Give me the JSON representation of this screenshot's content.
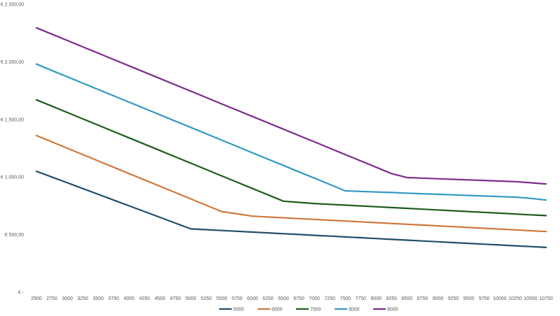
{
  "chart_data": {
    "type": "line",
    "title": "",
    "xlabel": "",
    "ylabel": "",
    "x": [
      2500,
      2750,
      3000,
      3250,
      3500,
      3750,
      4000,
      4250,
      4500,
      4750,
      5000,
      5250,
      5500,
      5750,
      6000,
      6250,
      6500,
      6750,
      7000,
      7250,
      7500,
      7750,
      8000,
      8250,
      8500,
      8750,
      9000,
      9250,
      9500,
      9750,
      10000,
      10250,
      10500,
      10750
    ],
    "x_tick_labels": [
      "2500",
      "2750",
      "3000",
      "3250",
      "3500",
      "3750",
      "4000",
      "4250",
      "4500",
      "4750",
      "5000",
      "5250",
      "5500",
      "5750",
      "6000",
      "6250",
      "6500",
      "6750",
      "7000",
      "7250",
      "7500",
      "7750",
      "8000",
      "8250",
      "8500",
      "8750",
      "9000",
      "9250",
      "9500",
      "9750",
      "10000",
      "10250",
      "10500",
      "10750"
    ],
    "ylim": [
      0,
      2500
    ],
    "y_ticks": [
      0,
      500,
      1000,
      1500,
      2000,
      2500
    ],
    "y_tick_labels": [
      "€ -",
      "€ 500,00",
      "€ 1.000,00",
      "€ 1.500,00",
      "€ 2.000,00",
      "€ 2.500,00"
    ],
    "grid": false,
    "legend_position": "bottom",
    "series": [
      {
        "name": "5000",
        "color": "#1f4e6b",
        "values": [
          1050,
          1000,
          950,
          900,
          850,
          800,
          750,
          700,
          650,
          600,
          550,
          543,
          536,
          529,
          522,
          515,
          508,
          501,
          494,
          487,
          480,
          473,
          466,
          459,
          452,
          445,
          438,
          431,
          424,
          417,
          410,
          403,
          396,
          389
        ]
      },
      {
        "name": "6000",
        "color": "#d0783c",
        "values": [
          1360,
          1305,
          1250,
          1195,
          1140,
          1085,
          1030,
          975,
          920,
          865,
          810,
          755,
          700,
          680,
          660,
          653,
          646,
          639,
          632,
          625,
          618,
          611,
          604,
          597,
          590,
          583,
          576,
          569,
          562,
          555,
          548,
          541,
          534,
          527
        ]
      },
      {
        "name": "7000",
        "color": "#1e5c1c",
        "values": [
          1670,
          1615,
          1560,
          1505,
          1450,
          1395,
          1340,
          1285,
          1230,
          1175,
          1120,
          1065,
          1010,
          955,
          900,
          845,
          790,
          780,
          770,
          763,
          756,
          749,
          742,
          735,
          728,
          721,
          714,
          707,
          700,
          693,
          686,
          679,
          672,
          665
        ]
      },
      {
        "name": "8000",
        "color": "#3399c4",
        "values": [
          1980,
          1925,
          1870,
          1815,
          1760,
          1705,
          1650,
          1595,
          1540,
          1485,
          1430,
          1375,
          1320,
          1265,
          1210,
          1155,
          1100,
          1045,
          990,
          935,
          880,
          875,
          870,
          865,
          860,
          855,
          850,
          845,
          840,
          835,
          830,
          825,
          815,
          800
        ]
      },
      {
        "name": "9000",
        "color": "#7d2c8c",
        "values": [
          2295,
          2240,
          2185,
          2130,
          2075,
          2020,
          1965,
          1910,
          1855,
          1800,
          1745,
          1690,
          1635,
          1580,
          1525,
          1470,
          1415,
          1360,
          1305,
          1250,
          1195,
          1140,
          1085,
          1030,
          995,
          990,
          985,
          980,
          975,
          970,
          965,
          960,
          950,
          940
        ]
      }
    ]
  }
}
